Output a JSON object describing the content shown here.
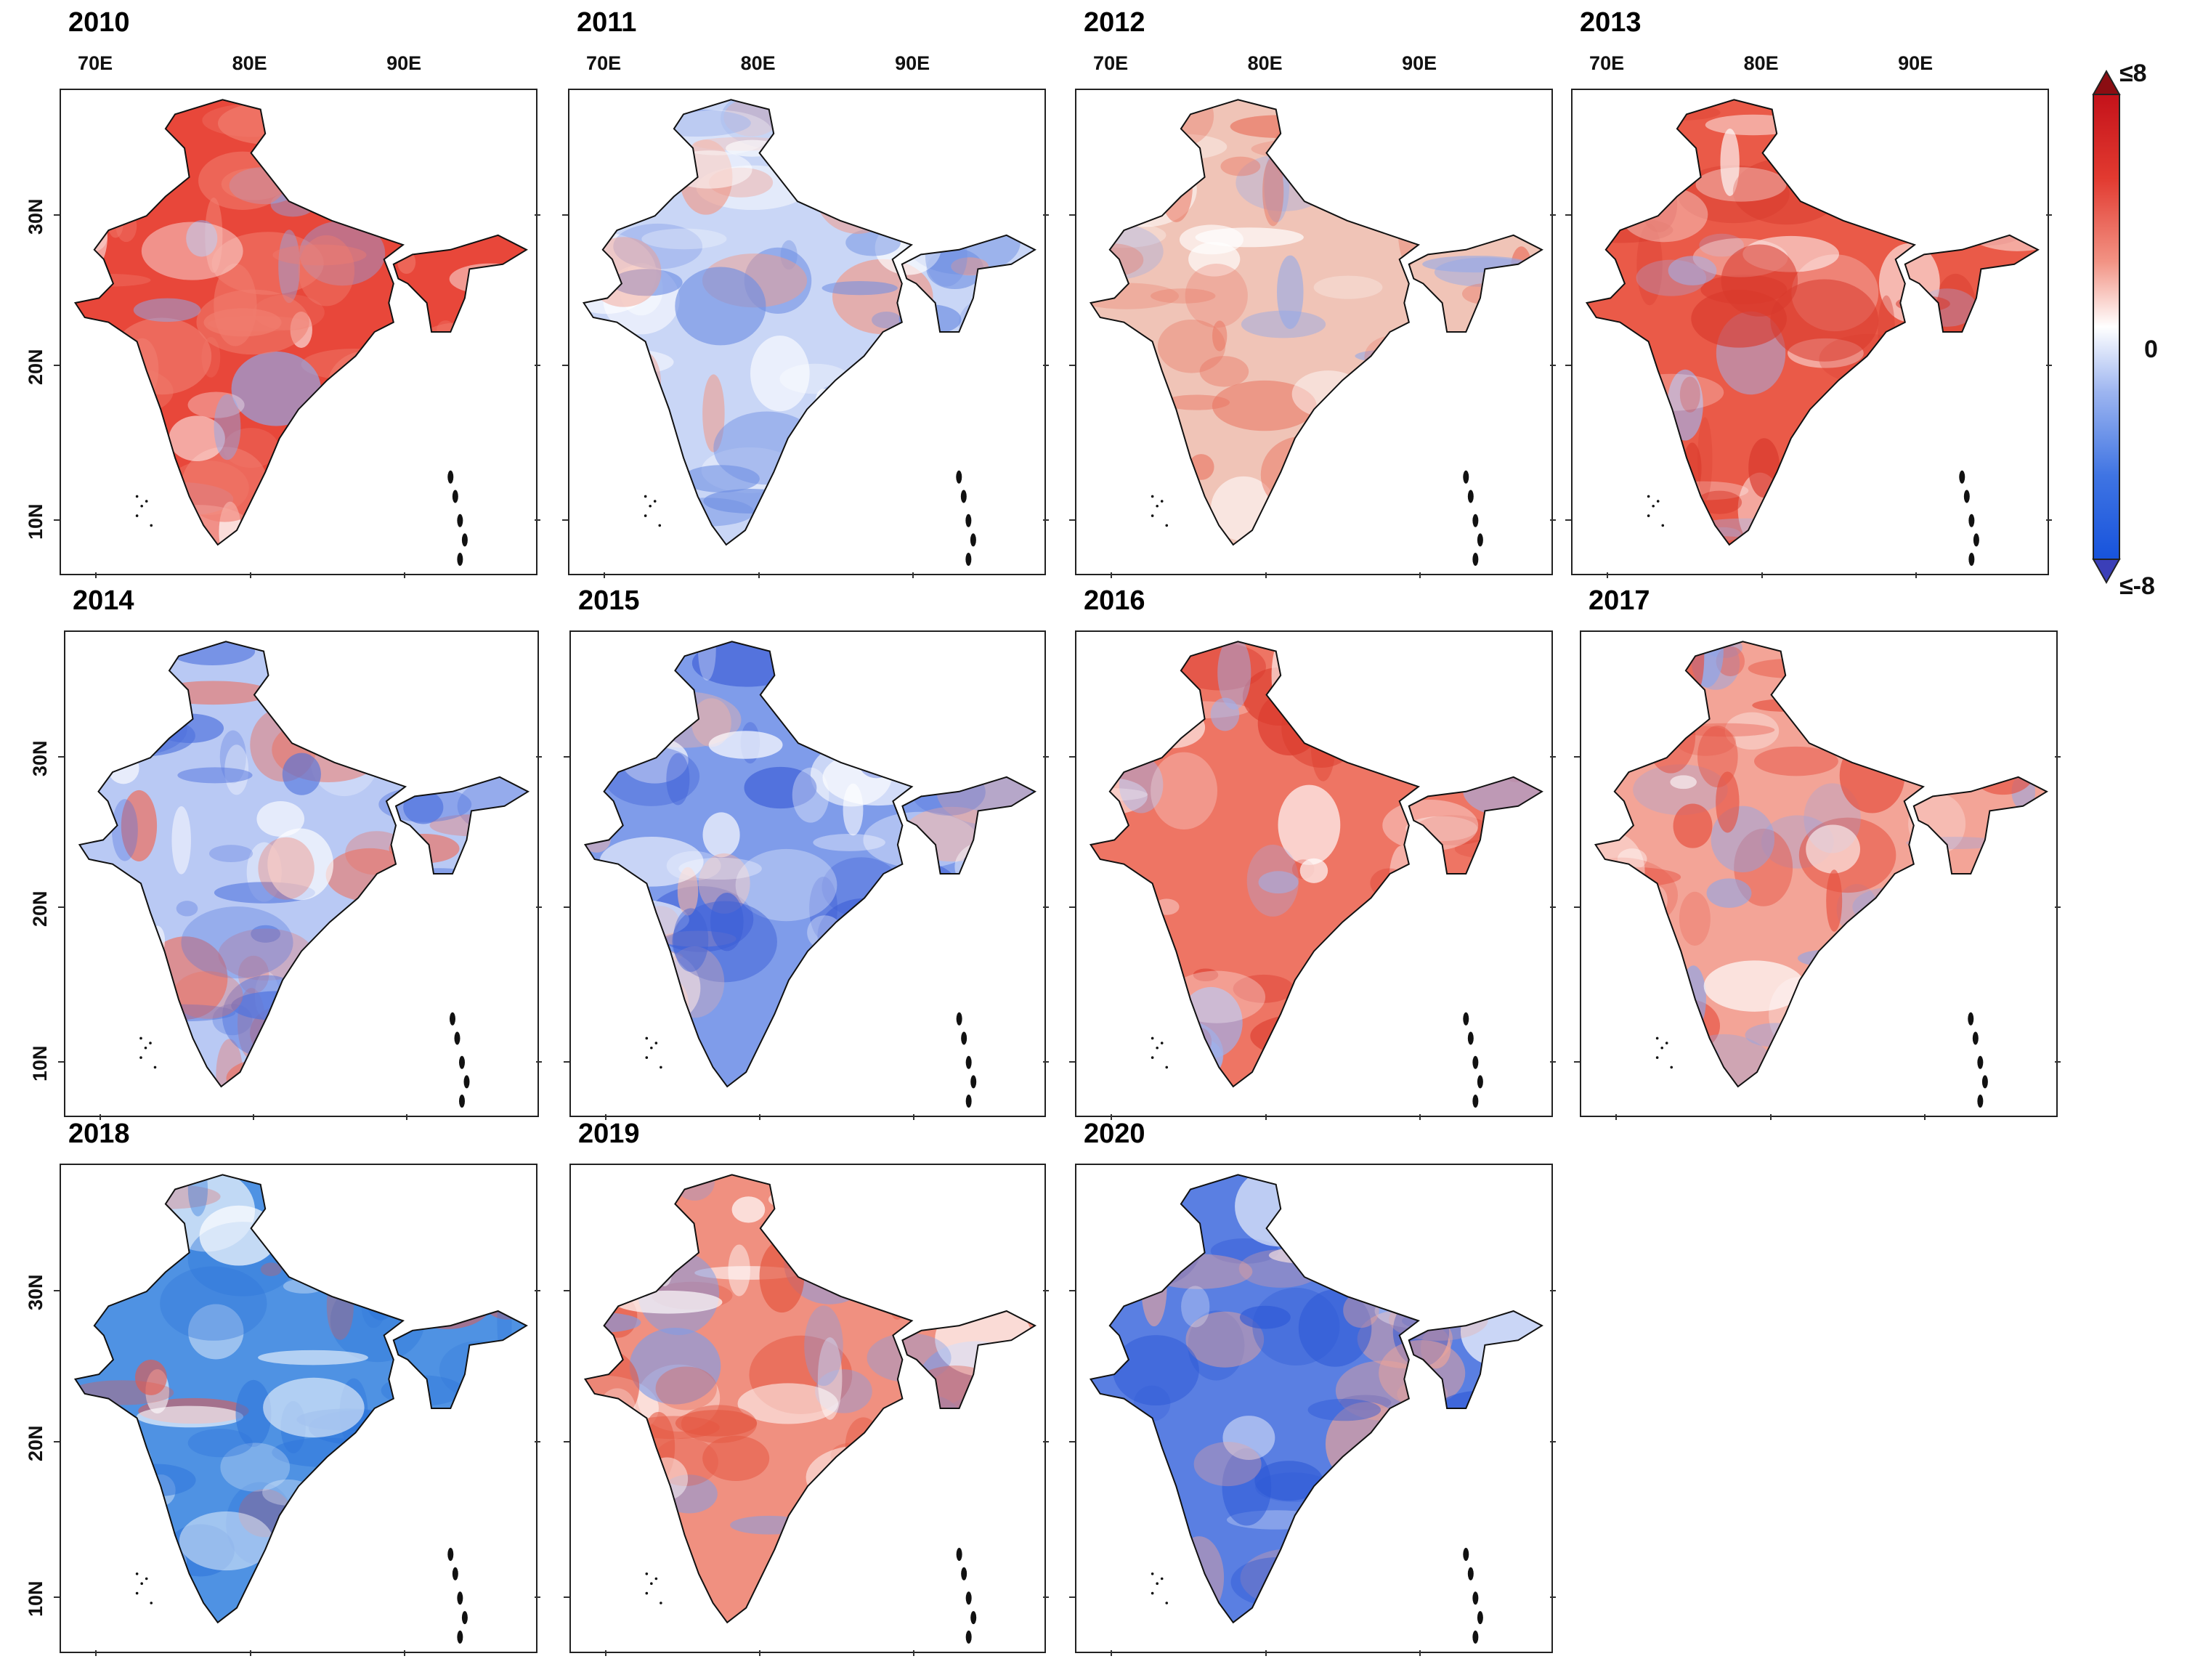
{
  "figure": {
    "colorbar": {
      "max_label": "≤8",
      "mid_label": "0",
      "min_label": "≤-8",
      "max_color": "#b40a17",
      "min_color": "#1f4fd8",
      "mid_color": "#ffffff",
      "stops": [
        "#8b0d12",
        "#d71f1f",
        "#ef7a6a",
        "#fbe1dc",
        "#ffffff",
        "#d9e4fb",
        "#6f94ea",
        "#1d5ae3",
        "#3b3fb8"
      ]
    },
    "lon_ticks": [
      "70E",
      "80E",
      "90E"
    ],
    "lat_ticks": [
      "30N",
      "20N",
      "10N"
    ]
  },
  "chart_data": {
    "type": "heatmap",
    "description_kind": "annual spatial anomaly maps over India",
    "value_range": [
      -8,
      8
    ],
    "panels": [
      {
        "year": "2010",
        "anomaly": "positive",
        "show_lon": true,
        "show_lat": true,
        "color": "#e8473a",
        "accent": "#f07d6f",
        "cool": "#8fa8ea"
      },
      {
        "year": "2011",
        "anomaly": "mixed",
        "show_lon": true,
        "show_lat": false,
        "color": "#c9d6f6",
        "accent": "#6f8fe3",
        "cool": "#ef9b8c"
      },
      {
        "year": "2012",
        "anomaly": "mixed",
        "show_lon": true,
        "show_lat": false,
        "color": "#f0c4b7",
        "accent": "#e9735f",
        "cool": "#8ea7eb"
      },
      {
        "year": "2013",
        "anomaly": "positive",
        "show_lon": true,
        "show_lat": false,
        "color": "#ea5a48",
        "accent": "#d8392c",
        "cool": "#9fb4ee"
      },
      {
        "year": "2014",
        "anomaly": "negative",
        "show_lon": false,
        "show_lat": true,
        "color": "#b9c9f4",
        "accent": "#4f72dd",
        "cool": "#ee6e5c"
      },
      {
        "year": "2015",
        "anomaly": "negative",
        "show_lon": false,
        "show_lat": false,
        "color": "#7f9cea",
        "accent": "#3e5fd6",
        "cool": "#f2b3a6"
      },
      {
        "year": "2016",
        "anomaly": "positive",
        "show_lon": false,
        "show_lat": false,
        "color": "#ee7564",
        "accent": "#dc3c2e",
        "cool": "#9db2ee"
      },
      {
        "year": "2017",
        "anomaly": "positive",
        "show_lon": false,
        "show_lat": false,
        "color": "#f3a497",
        "accent": "#e6503f",
        "cool": "#8ba6eb"
      },
      {
        "year": "2018",
        "anomaly": "negative",
        "show_lon": false,
        "show_lat": true,
        "color": "#4f92e3",
        "accent": "#2f76db",
        "cool": "#e5584b"
      },
      {
        "year": "2019",
        "anomaly": "positive",
        "show_lon": false,
        "show_lat": false,
        "color": "#f09080",
        "accent": "#e4553f",
        "cool": "#7f9de8"
      },
      {
        "year": "2020",
        "anomaly": "negative",
        "show_lon": false,
        "show_lat": false,
        "color": "#5a7fe2",
        "accent": "#2d58d6",
        "cool": "#f0a597"
      }
    ]
  }
}
